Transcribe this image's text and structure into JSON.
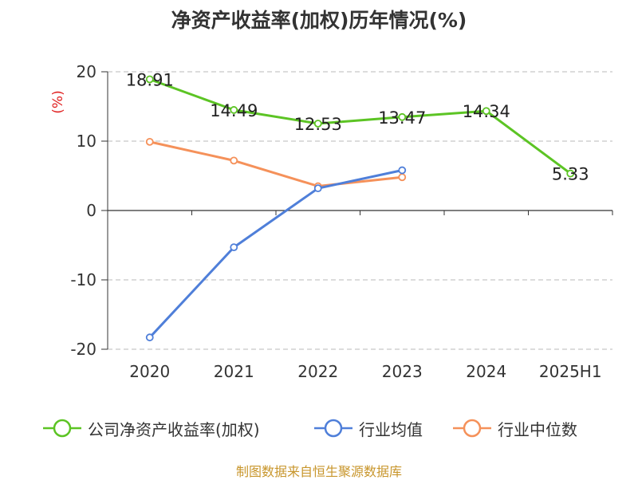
{
  "title": "净资产收益率(加权)历年情况(%)",
  "source": "制图数据来自恒生聚源数据库",
  "chart_data": {
    "type": "line",
    "title": "净资产收益率(加权)历年情况(%)",
    "ylabel": "(%)",
    "xlabel": "",
    "categories": [
      "2020",
      "2021",
      "2022",
      "2023",
      "2024",
      "2025H1"
    ],
    "ylim": [
      -20,
      20
    ],
    "yticks": [
      20,
      10,
      0,
      -10,
      -20
    ],
    "ytick_labels": [
      "20",
      "10",
      "0",
      "-10",
      "-20"
    ],
    "grid": true,
    "legend_position": "bottom",
    "series": [
      {
        "name": "公司净资产收益率(加权)",
        "color": "#5cc424",
        "values": [
          18.91,
          14.49,
          12.53,
          13.47,
          14.34,
          5.33
        ],
        "labels": [
          "18.91",
          "14.49",
          "12.53",
          "13.47",
          "14.34",
          "5.33"
        ]
      },
      {
        "name": "行业均值",
        "color": "#4f7fd9",
        "values": [
          -18.3,
          -5.3,
          3.2,
          5.8,
          null,
          null
        ]
      },
      {
        "name": "行业中位数",
        "color": "#f5915a",
        "values": [
          9.9,
          7.2,
          3.5,
          4.8,
          null,
          null
        ]
      }
    ]
  }
}
